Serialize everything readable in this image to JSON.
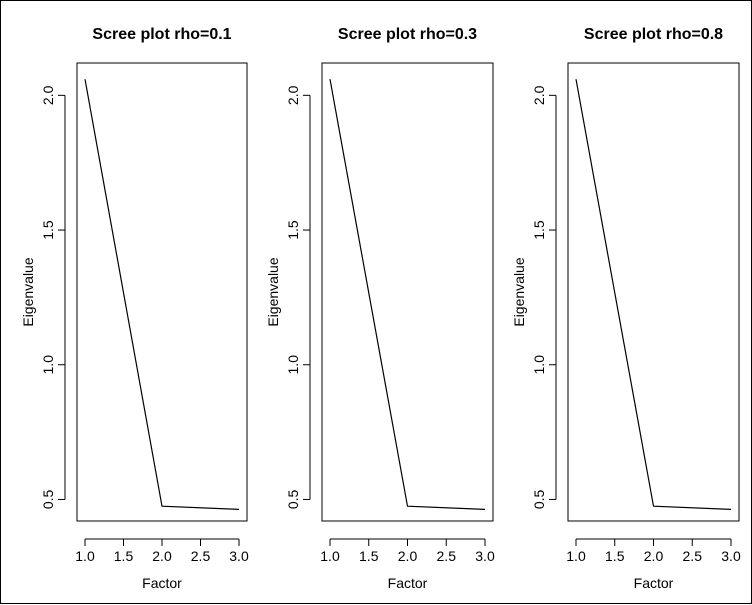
{
  "chart_data": [
    {
      "type": "line",
      "title": "Scree plot rho=0.1",
      "xlabel": "Factor",
      "ylabel": "Eigenvalue",
      "x": [
        1,
        2,
        3
      ],
      "y": [
        2.06,
        0.475,
        0.463
      ],
      "xlim": [
        1,
        3
      ],
      "ylim": [
        0.42,
        2.12
      ],
      "xticks": [
        "1.0",
        "1.5",
        "2.0",
        "2.5",
        "3.0"
      ],
      "yticks": [
        "0.5",
        "1.0",
        "1.5",
        "2.0"
      ],
      "grid": false
    },
    {
      "type": "line",
      "title": "Scree plot rho=0.3",
      "xlabel": "Factor",
      "ylabel": "Eigenvalue",
      "x": [
        1,
        2,
        3
      ],
      "y": [
        2.06,
        0.475,
        0.463
      ],
      "xlim": [
        1,
        3
      ],
      "ylim": [
        0.42,
        2.12
      ],
      "xticks": [
        "1.0",
        "1.5",
        "2.0",
        "2.5",
        "3.0"
      ],
      "yticks": [
        "0.5",
        "1.0",
        "1.5",
        "2.0"
      ],
      "grid": false
    },
    {
      "type": "line",
      "title": "Scree plot rho=0.8",
      "xlabel": "Factor",
      "ylabel": "Eigenvalue",
      "x": [
        1,
        2,
        3
      ],
      "y": [
        2.06,
        0.475,
        0.463
      ],
      "xlim": [
        1,
        3
      ],
      "ylim": [
        0.42,
        2.12
      ],
      "xticks": [
        "1.0",
        "1.5",
        "2.0",
        "2.5",
        "3.0"
      ],
      "yticks": [
        "0.5",
        "1.0",
        "1.5",
        "2.0"
      ],
      "grid": false
    }
  ]
}
